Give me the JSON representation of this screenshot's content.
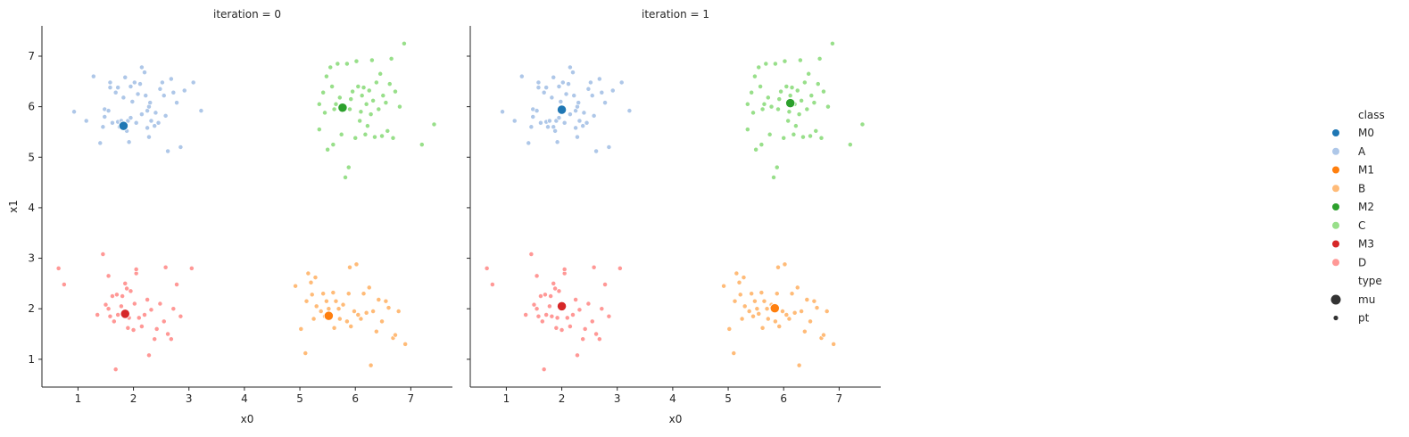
{
  "chart_data": {
    "type": "scatter",
    "facet_variable": "iteration",
    "xlabel": "x0",
    "ylabel": "x1",
    "xlim": [
      0.35,
      7.75
    ],
    "ylim": [
      0.45,
      7.6
    ],
    "xticks": [
      1,
      2,
      3,
      4,
      5,
      6,
      7
    ],
    "yticks": [
      1,
      2,
      3,
      4,
      5,
      6,
      7
    ],
    "grid": false,
    "legend_position": "right",
    "legend": {
      "hue_title": "class",
      "hue_entries": [
        {
          "label": "M0",
          "color": "#1f77b4"
        },
        {
          "label": "A",
          "color": "#aec7e8"
        },
        {
          "label": "M1",
          "color": "#ff7f0e"
        },
        {
          "label": "B",
          "color": "#ffbb78"
        },
        {
          "label": "M2",
          "color": "#2ca02c"
        },
        {
          "label": "C",
          "color": "#98df8a"
        },
        {
          "label": "M3",
          "color": "#d62728"
        },
        {
          "label": "D",
          "color": "#ff9896"
        }
      ],
      "size_title": "type",
      "size_entries": [
        {
          "label": "mu",
          "size": "large"
        },
        {
          "label": "pt",
          "size": "small"
        }
      ]
    },
    "points": {
      "A": {
        "color": "#aec7e8",
        "xy": [
          [
            1.28,
            6.6
          ],
          [
            0.93,
            5.9
          ],
          [
            1.15,
            5.72
          ],
          [
            1.4,
            5.28
          ],
          [
            1.45,
            5.6
          ],
          [
            1.48,
            5.8
          ],
          [
            1.48,
            5.95
          ],
          [
            1.55,
            5.92
          ],
          [
            1.58,
            6.38
          ],
          [
            1.58,
            6.48
          ],
          [
            1.62,
            5.68
          ],
          [
            1.68,
            6.28
          ],
          [
            1.72,
            6.38
          ],
          [
            1.72,
            5.7
          ],
          [
            1.75,
            5.6
          ],
          [
            1.78,
            5.72
          ],
          [
            1.82,
            6.18
          ],
          [
            1.85,
            6.58
          ],
          [
            1.85,
            5.6
          ],
          [
            1.88,
            5.52
          ],
          [
            1.9,
            5.72
          ],
          [
            1.92,
            5.3
          ],
          [
            1.95,
            6.4
          ],
          [
            1.95,
            5.78
          ],
          [
            1.98,
            6.1
          ],
          [
            2.02,
            6.48
          ],
          [
            2.05,
            5.68
          ],
          [
            2.08,
            6.25
          ],
          [
            2.12,
            6.45
          ],
          [
            2.15,
            5.85
          ],
          [
            2.15,
            6.78
          ],
          [
            2.2,
            6.68
          ],
          [
            2.22,
            6.22
          ],
          [
            2.25,
            5.58
          ],
          [
            2.25,
            5.92
          ],
          [
            2.28,
            5.4
          ],
          [
            2.28,
            6.0
          ],
          [
            2.3,
            6.08
          ],
          [
            2.32,
            5.72
          ],
          [
            2.38,
            5.62
          ],
          [
            2.4,
            5.88
          ],
          [
            2.45,
            5.68
          ],
          [
            2.48,
            6.35
          ],
          [
            2.52,
            6.48
          ],
          [
            2.55,
            6.22
          ],
          [
            2.58,
            5.82
          ],
          [
            2.62,
            5.12
          ],
          [
            2.68,
            6.55
          ],
          [
            2.72,
            6.28
          ],
          [
            2.78,
            6.08
          ],
          [
            2.85,
            5.2
          ],
          [
            2.92,
            6.32
          ],
          [
            3.08,
            6.48
          ],
          [
            3.22,
            5.92
          ]
        ]
      },
      "B": {
        "color": "#ffbb78",
        "xy": [
          [
            4.92,
            2.45
          ],
          [
            5.02,
            1.6
          ],
          [
            5.1,
            1.12
          ],
          [
            5.12,
            2.15
          ],
          [
            5.15,
            2.7
          ],
          [
            5.2,
            2.52
          ],
          [
            5.22,
            2.28
          ],
          [
            5.25,
            1.8
          ],
          [
            5.28,
            2.62
          ],
          [
            5.3,
            2.05
          ],
          [
            5.38,
            1.95
          ],
          [
            5.42,
            2.3
          ],
          [
            5.45,
            1.85
          ],
          [
            5.48,
            2.15
          ],
          [
            5.52,
            2.0
          ],
          [
            5.55,
            1.9
          ],
          [
            5.6,
            2.32
          ],
          [
            5.62,
            1.62
          ],
          [
            5.65,
            2.15
          ],
          [
            5.7,
            2.0
          ],
          [
            5.72,
            1.8
          ],
          [
            5.78,
            2.08
          ],
          [
            5.85,
            1.75
          ],
          [
            5.88,
            2.3
          ],
          [
            5.9,
            2.82
          ],
          [
            5.92,
            1.65
          ],
          [
            5.98,
            1.95
          ],
          [
            6.02,
            2.88
          ],
          [
            6.05,
            1.88
          ],
          [
            6.1,
            1.8
          ],
          [
            6.15,
            2.3
          ],
          [
            6.2,
            1.92
          ],
          [
            6.25,
            2.42
          ],
          [
            6.28,
            0.88
          ],
          [
            6.32,
            1.95
          ],
          [
            6.38,
            1.55
          ],
          [
            6.42,
            2.18
          ],
          [
            6.48,
            1.75
          ],
          [
            6.55,
            2.15
          ],
          [
            6.6,
            2.02
          ],
          [
            6.68,
            1.42
          ],
          [
            6.72,
            1.48
          ],
          [
            6.78,
            1.95
          ],
          [
            6.9,
            1.3
          ]
        ]
      },
      "C": {
        "color": "#98df8a",
        "xy": [
          [
            5.35,
            5.55
          ],
          [
            5.35,
            6.05
          ],
          [
            5.42,
            6.28
          ],
          [
            5.45,
            5.88
          ],
          [
            5.48,
            6.6
          ],
          [
            5.5,
            5.15
          ],
          [
            5.55,
            6.78
          ],
          [
            5.58,
            6.4
          ],
          [
            5.6,
            5.25
          ],
          [
            5.62,
            5.95
          ],
          [
            5.65,
            6.05
          ],
          [
            5.68,
            6.85
          ],
          [
            5.72,
            6.18
          ],
          [
            5.75,
            5.45
          ],
          [
            5.78,
            6.0
          ],
          [
            5.82,
            4.6
          ],
          [
            5.85,
            6.85
          ],
          [
            5.88,
            4.8
          ],
          [
            5.9,
            5.95
          ],
          [
            5.92,
            6.15
          ],
          [
            5.95,
            6.3
          ],
          [
            6.0,
            5.38
          ],
          [
            6.02,
            6.9
          ],
          [
            6.05,
            6.4
          ],
          [
            6.08,
            5.72
          ],
          [
            6.1,
            5.9
          ],
          [
            6.12,
            6.22
          ],
          [
            6.15,
            6.38
          ],
          [
            6.18,
            5.45
          ],
          [
            6.2,
            6.05
          ],
          [
            6.22,
            5.62
          ],
          [
            6.25,
            6.32
          ],
          [
            6.28,
            5.85
          ],
          [
            6.3,
            6.92
          ],
          [
            6.32,
            6.12
          ],
          [
            6.35,
            5.4
          ],
          [
            6.38,
            6.48
          ],
          [
            6.42,
            5.95
          ],
          [
            6.45,
            6.65
          ],
          [
            6.48,
            5.42
          ],
          [
            6.5,
            6.22
          ],
          [
            6.55,
            6.08
          ],
          [
            6.58,
            5.52
          ],
          [
            6.62,
            6.45
          ],
          [
            6.65,
            6.95
          ],
          [
            6.68,
            5.38
          ],
          [
            6.72,
            6.3
          ],
          [
            6.8,
            6.0
          ],
          [
            6.88,
            7.25
          ],
          [
            7.2,
            5.25
          ],
          [
            7.42,
            5.65
          ]
        ]
      },
      "D": {
        "color": "#ff9896",
        "xy": [
          [
            0.65,
            2.8
          ],
          [
            0.75,
            2.48
          ],
          [
            1.35,
            1.88
          ],
          [
            1.45,
            3.08
          ],
          [
            1.5,
            2.08
          ],
          [
            1.55,
            2.0
          ],
          [
            1.55,
            2.65
          ],
          [
            1.58,
            1.85
          ],
          [
            1.62,
            2.25
          ],
          [
            1.65,
            1.75
          ],
          [
            1.68,
            0.8
          ],
          [
            1.7,
            2.28
          ],
          [
            1.72,
            1.88
          ],
          [
            1.78,
            2.05
          ],
          [
            1.8,
            2.25
          ],
          [
            1.82,
            1.85
          ],
          [
            1.85,
            2.5
          ],
          [
            1.88,
            2.4
          ],
          [
            1.9,
            1.62
          ],
          [
            1.92,
            1.82
          ],
          [
            1.95,
            2.35
          ],
          [
            2.0,
            1.58
          ],
          [
            2.02,
            2.1
          ],
          [
            2.05,
            2.7
          ],
          [
            2.05,
            2.78
          ],
          [
            2.1,
            1.82
          ],
          [
            2.15,
            1.65
          ],
          [
            2.2,
            1.88
          ],
          [
            2.25,
            2.18
          ],
          [
            2.28,
            1.08
          ],
          [
            2.32,
            1.98
          ],
          [
            2.38,
            1.4
          ],
          [
            2.42,
            1.6
          ],
          [
            2.48,
            2.1
          ],
          [
            2.55,
            1.75
          ],
          [
            2.58,
            2.82
          ],
          [
            2.62,
            1.5
          ],
          [
            2.68,
            1.4
          ],
          [
            2.72,
            2.0
          ],
          [
            2.78,
            2.48
          ],
          [
            2.85,
            1.85
          ],
          [
            3.05,
            2.8
          ]
        ]
      }
    },
    "means": [
      {
        "iteration": 0,
        "points": [
          {
            "class": "M0",
            "color": "#1f77b4",
            "x": 1.82,
            "y": 5.62
          },
          {
            "class": "M1",
            "color": "#ff7f0e",
            "x": 5.52,
            "y": 1.86
          },
          {
            "class": "M2",
            "color": "#2ca02c",
            "x": 5.77,
            "y": 5.98
          },
          {
            "class": "M3",
            "color": "#d62728",
            "x": 1.85,
            "y": 1.9
          }
        ]
      },
      {
        "iteration": 1,
        "points": [
          {
            "class": "M0",
            "color": "#1f77b4",
            "x": 2.0,
            "y": 5.94
          },
          {
            "class": "M1",
            "color": "#ff7f0e",
            "x": 5.84,
            "y": 2.01
          },
          {
            "class": "M2",
            "color": "#2ca02c",
            "x": 6.12,
            "y": 6.07
          },
          {
            "class": "M3",
            "color": "#d62728",
            "x": 2.0,
            "y": 2.05
          }
        ]
      }
    ],
    "facets": [
      {
        "title": "iteration = 0"
      },
      {
        "title": "iteration = 1"
      }
    ]
  }
}
